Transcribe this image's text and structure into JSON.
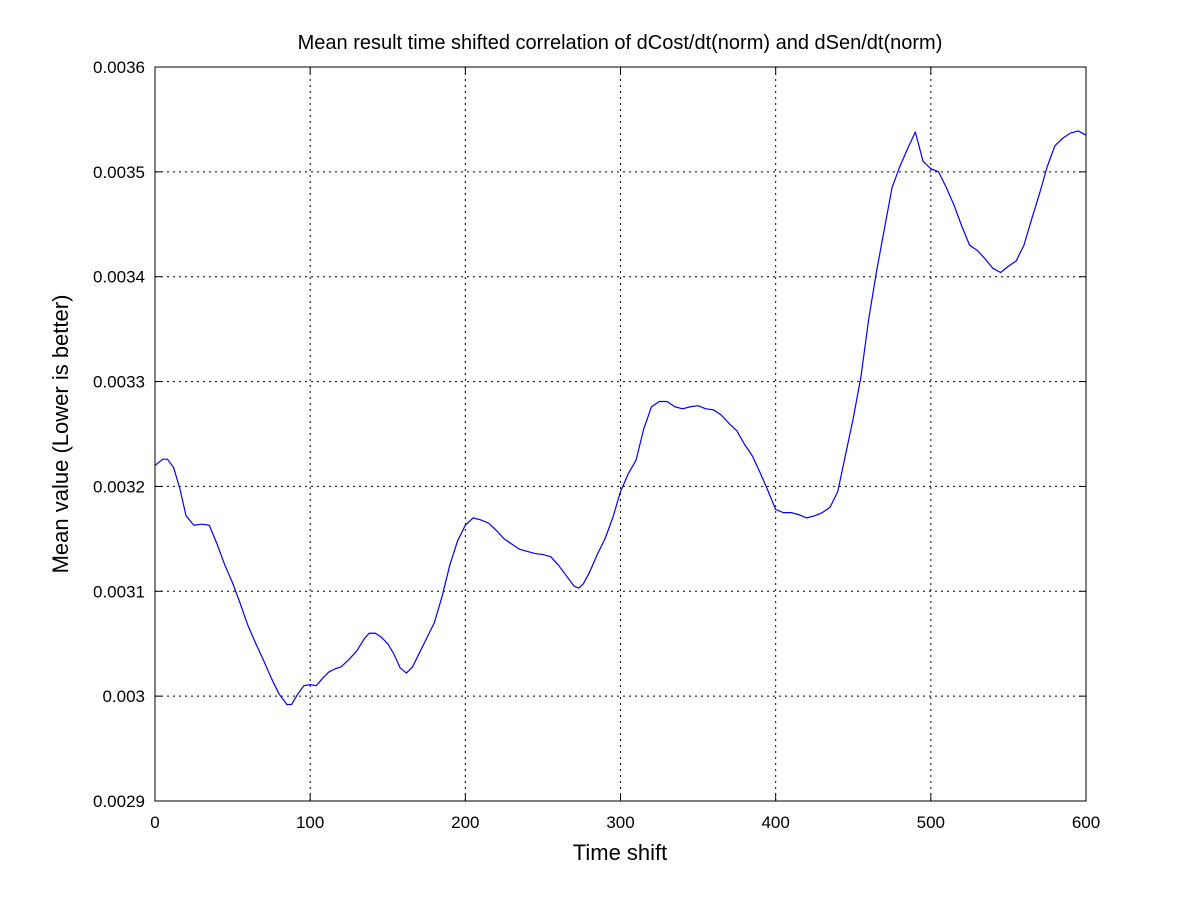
{
  "chart_data": {
    "type": "line",
    "title": "Mean result time shifted correlation of dCost/dt(norm) and dSen/dt(norm)",
    "xlabel": "Time shift",
    "ylabel": "Mean value (Lower is better)",
    "xlim": [
      0,
      600
    ],
    "ylim": [
      0.0029,
      0.0036
    ],
    "xticks": [
      0,
      100,
      200,
      300,
      400,
      500,
      600
    ],
    "xtick_labels": [
      "0",
      "100",
      "200",
      "300",
      "400",
      "500",
      "600"
    ],
    "yticks": [
      0.0029,
      0.003,
      0.0031,
      0.0032,
      0.0033,
      0.0034,
      0.0035,
      0.0036
    ],
    "ytick_labels": [
      "0.0029",
      "0.003",
      "0.0031",
      "0.0032",
      "0.0033",
      "0.0034",
      "0.0035",
      "0.0036"
    ],
    "grid": true,
    "series": [
      {
        "name": "mean correlation",
        "color": "#0000ff",
        "x": [
          0,
          5,
          8,
          12,
          16,
          20,
          25,
          30,
          35,
          40,
          45,
          50,
          55,
          60,
          65,
          70,
          75,
          80,
          85,
          88,
          92,
          96,
          100,
          104,
          108,
          112,
          116,
          120,
          125,
          130,
          135,
          138,
          142,
          146,
          150,
          154,
          158,
          162,
          166,
          170,
          175,
          180,
          185,
          190,
          195,
          200,
          205,
          210,
          215,
          220,
          225,
          230,
          235,
          240,
          245,
          250,
          255,
          260,
          265,
          270,
          273,
          276,
          280,
          285,
          290,
          295,
          300,
          305,
          310,
          315,
          320,
          325,
          330,
          335,
          340,
          345,
          350,
          355,
          360,
          365,
          370,
          375,
          380,
          385,
          390,
          395,
          400,
          405,
          410,
          415,
          420,
          425,
          430,
          435,
          440,
          445,
          450,
          455,
          460,
          465,
          470,
          475,
          480,
          485,
          490,
          495,
          500,
          505,
          510,
          515,
          520,
          525,
          530,
          535,
          540,
          545,
          550,
          555,
          560,
          565,
          570,
          575,
          580,
          585,
          590,
          595,
          600
        ],
        "y": [
          0.00322,
          0.003226,
          0.003226,
          0.003218,
          0.003198,
          0.003172,
          0.003163,
          0.003164,
          0.003163,
          0.003145,
          0.003125,
          0.003108,
          0.003088,
          0.003067,
          0.00305,
          0.003034,
          0.003017,
          0.003002,
          0.002992,
          0.002992,
          0.003002,
          0.00301,
          0.003011,
          0.00301,
          0.003017,
          0.003023,
          0.003026,
          0.003028,
          0.003035,
          0.003043,
          0.003055,
          0.00306,
          0.00306,
          0.003056,
          0.00305,
          0.00304,
          0.003027,
          0.003022,
          0.003028,
          0.00304,
          0.003055,
          0.00307,
          0.003095,
          0.003125,
          0.003148,
          0.003163,
          0.00317,
          0.003168,
          0.003165,
          0.003158,
          0.00315,
          0.003145,
          0.00314,
          0.003138,
          0.003136,
          0.003135,
          0.003133,
          0.003125,
          0.003115,
          0.003105,
          0.003103,
          0.003107,
          0.003118,
          0.003135,
          0.00315,
          0.00317,
          0.003195,
          0.003212,
          0.003225,
          0.003255,
          0.003276,
          0.003281,
          0.003281,
          0.003276,
          0.003274,
          0.003276,
          0.003277,
          0.003274,
          0.003273,
          0.003268,
          0.00326,
          0.003253,
          0.00324,
          0.003229,
          0.003213,
          0.003196,
          0.003178,
          0.003175,
          0.003175,
          0.003173,
          0.00317,
          0.003172,
          0.003175,
          0.00318,
          0.003195,
          0.00323,
          0.003265,
          0.003305,
          0.00336,
          0.003405,
          0.003445,
          0.003485,
          0.003505,
          0.003522,
          0.003538,
          0.00351,
          0.003503,
          0.0035,
          0.003485,
          0.003468,
          0.003448,
          0.00343,
          0.003425,
          0.003417,
          0.003408,
          0.003404,
          0.00341,
          0.003415,
          0.00343,
          0.003455,
          0.003479,
          0.003505,
          0.003525,
          0.003532,
          0.003537,
          0.003539,
          0.003535
        ]
      }
    ]
  }
}
